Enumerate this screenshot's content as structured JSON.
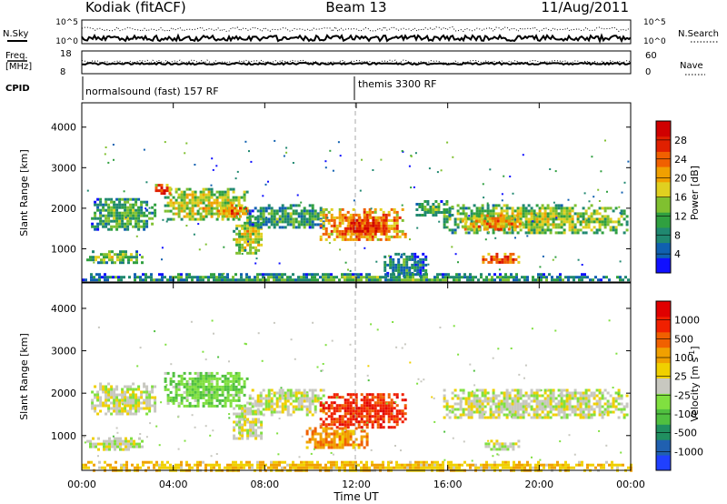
{
  "header": {
    "radar": "Kodiak (fitACF)",
    "beam": "Beam 13",
    "date": "11/Aug/2011"
  },
  "strip": {
    "nsky_label": "N.Sky",
    "nsky_ticks": [
      "10^5",
      "10^0"
    ],
    "nsearch_label": "N.Search",
    "nsearch_ticks": [
      "10^5",
      "10^0"
    ],
    "freq_label_1": "Freq.",
    "freq_label_2": "[MHz]",
    "freq_ticks": [
      "18",
      "8"
    ],
    "nave_label": "Nave",
    "nave_ticks": [
      "60",
      "0"
    ],
    "cpid_label": "CPID",
    "cpid_segments": [
      {
        "label": "normalsound (fast) 157 RF",
        "start_hour": 0
      },
      {
        "label": "themis 3300 RF",
        "start_hour": 12
      }
    ]
  },
  "chart_data": [
    {
      "type": "heatmap",
      "name": "power-panel",
      "ylabel": "Slant Range [km]",
      "xlabel": "",
      "x_ticks": [
        "00:00",
        "04:00",
        "08:00",
        "12:00",
        "16:00",
        "20:00",
        "00:00"
      ],
      "xlim_hours": [
        0,
        24
      ],
      "ylim_km": [
        180,
        4600
      ],
      "y_ticks": [
        1000,
        2000,
        3000,
        4000
      ],
      "colorbar": {
        "label": "Power [dB]",
        "ticks": [
          "4",
          "8",
          "12",
          "16",
          "20",
          "24",
          "28"
        ],
        "colors": [
          "#1010ff",
          "#1060b0",
          "#208870",
          "#30a040",
          "#80c030",
          "#e0d020",
          "#f0a000",
          "#f06000",
          "#e02000",
          "#d00000"
        ]
      },
      "blobs": [
        {
          "t0": 0.2,
          "t1": 2.6,
          "r0": 680,
          "r1": 960,
          "level": 0.45
        },
        {
          "t0": 0.4,
          "t1": 3.2,
          "r0": 1500,
          "r1": 2250,
          "level": 0.4
        },
        {
          "t0": 3.6,
          "t1": 7.2,
          "r0": 1700,
          "r1": 2500,
          "level": 0.55
        },
        {
          "t0": 5.8,
          "t1": 7.3,
          "r0": 1800,
          "r1": 2100,
          "level": 0.75
        },
        {
          "t0": 6.6,
          "t1": 7.9,
          "r0": 900,
          "r1": 1800,
          "level": 0.55
        },
        {
          "t0": 7.3,
          "t1": 10.6,
          "r0": 1500,
          "r1": 2100,
          "level": 0.35
        },
        {
          "t0": 10.4,
          "t1": 14.1,
          "r0": 1200,
          "r1": 2000,
          "level": 0.75
        },
        {
          "t0": 11.5,
          "t1": 13.2,
          "r0": 1350,
          "r1": 1800,
          "level": 0.9
        },
        {
          "t0": 13.2,
          "t1": 15.1,
          "r0": 300,
          "r1": 900,
          "level": 0.3
        },
        {
          "t0": 15.8,
          "t1": 23.8,
          "r0": 1400,
          "r1": 2100,
          "level": 0.5
        },
        {
          "t0": 16.6,
          "t1": 19.2,
          "r0": 1450,
          "r1": 1850,
          "level": 0.7
        },
        {
          "t0": 17.5,
          "t1": 19.1,
          "r0": 650,
          "r1": 900,
          "level": 0.8
        },
        {
          "t0": 14.6,
          "t1": 16.2,
          "r0": 1800,
          "r1": 2200,
          "level": 0.4
        },
        {
          "t0": 3.2,
          "t1": 3.8,
          "r0": 2350,
          "r1": 2600,
          "level": 0.85
        },
        {
          "t0": 0.0,
          "t1": 24.0,
          "r0": 200,
          "r1": 400,
          "level": 0.35
        }
      ]
    },
    {
      "type": "heatmap",
      "name": "velocity-panel",
      "ylabel": "Slant Range [km]",
      "xlabel": "Time UT",
      "x_ticks": [
        "00:00",
        "04:00",
        "08:00",
        "12:00",
        "16:00",
        "20:00",
        "00:00"
      ],
      "xlim_hours": [
        0,
        24
      ],
      "ylim_km": [
        180,
        4600
      ],
      "y_ticks": [
        1000,
        2000,
        3000,
        4000
      ],
      "colorbar": {
        "label": "Velocity [m s^-1]",
        "ticks": [
          "1000",
          "500",
          "100",
          "25",
          "-25",
          "-100",
          "-500",
          "-1000"
        ],
        "colors": [
          "#2040ff",
          "#2060b0",
          "#209060",
          "#50c040",
          "#80e040",
          "#c8c8c0",
          "#f0d000",
          "#f0a000",
          "#f06000",
          "#f02000",
          "#e00000"
        ]
      },
      "blobs": [
        {
          "t0": 0.2,
          "t1": 2.6,
          "r0": 680,
          "r1": 960,
          "level": 0.5
        },
        {
          "t0": 0.4,
          "t1": 3.2,
          "r0": 1500,
          "r1": 2250,
          "level": 0.5
        },
        {
          "t0": 3.6,
          "t1": 7.2,
          "r0": 1700,
          "r1": 2500,
          "level": 0.38
        },
        {
          "t0": 6.6,
          "t1": 7.9,
          "r0": 900,
          "r1": 1800,
          "level": 0.5
        },
        {
          "t0": 7.3,
          "t1": 10.6,
          "r0": 1500,
          "r1": 2100,
          "level": 0.5
        },
        {
          "t0": 10.4,
          "t1": 14.1,
          "r0": 1200,
          "r1": 2000,
          "level": 0.85
        },
        {
          "t0": 9.8,
          "t1": 12.5,
          "r0": 700,
          "r1": 1200,
          "level": 0.7
        },
        {
          "t0": 15.8,
          "t1": 23.8,
          "r0": 1400,
          "r1": 2100,
          "level": 0.5
        },
        {
          "t0": 17.5,
          "t1": 19.1,
          "r0": 650,
          "r1": 900,
          "level": 0.5
        },
        {
          "t0": 0.0,
          "t1": 24.0,
          "r0": 200,
          "r1": 400,
          "level": 0.62
        }
      ]
    }
  ]
}
